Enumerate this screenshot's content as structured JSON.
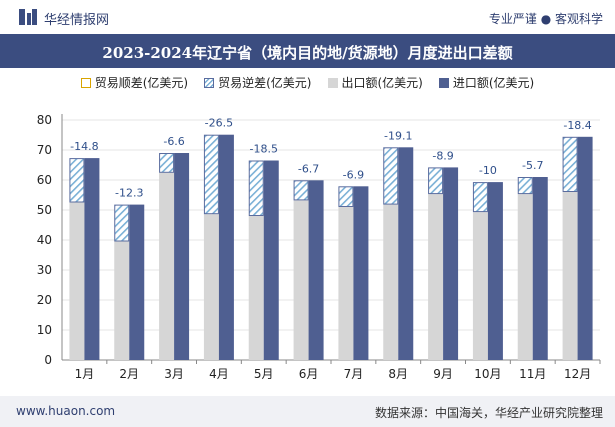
{
  "header": {
    "brand": "华经情报网",
    "tagline": "专业严谨 ● 客观科学"
  },
  "legend": {
    "surplus": "贸易顺差(亿美元)",
    "deficit": "贸易逆差(亿美元)",
    "export": "出口额(亿美元)",
    "import": "进口额(亿美元)"
  },
  "footer": {
    "website": "www.huaon.com",
    "source": "数据来源：中国海关，华经产业研究院整理"
  },
  "colors": {
    "import": "#4f5f91",
    "export": "#d6d6d6",
    "deficit_hatch": "#7ab0d6",
    "deficit_border": "#5a6c9e",
    "label": "#2f4f8a"
  },
  "chart_data": {
    "type": "bar",
    "title": "2023-2024年辽宁省（境内目的地/货源地）月度进出口差额",
    "categories": [
      "1月",
      "2月",
      "3月",
      "4月",
      "5月",
      "6月",
      "7月",
      "8月",
      "9月",
      "10月",
      "11月",
      "12月"
    ],
    "series": [
      {
        "name": "出口额(亿美元)",
        "values": [
          52.5,
          39.5,
          62.4,
          48.6,
          48.0,
          53.2,
          51.0,
          51.8,
          55.3,
          49.3,
          55.3,
          56.0
        ]
      },
      {
        "name": "进口额(亿美元)",
        "values": [
          67.3,
          51.8,
          69.0,
          75.1,
          66.5,
          59.9,
          57.9,
          70.9,
          64.2,
          59.3,
          61.0,
          74.4
        ]
      },
      {
        "name": "贸易逆差(亿美元)",
        "values": [
          -14.8,
          -12.3,
          -6.6,
          -26.5,
          -18.5,
          -6.7,
          -6.9,
          -19.1,
          -8.9,
          -10,
          -5.7,
          -18.4
        ]
      },
      {
        "name": "贸易顺差(亿美元)",
        "values": [
          null,
          null,
          null,
          null,
          null,
          null,
          null,
          null,
          null,
          null,
          null,
          null
        ]
      }
    ],
    "data_labels": [
      "-14.8",
      "-12.3",
      "-6.6",
      "-26.5",
      "-18.5",
      "-6.7",
      "-6.9",
      "-19.1",
      "-8.9",
      "-10",
      "-5.7",
      "-18.4"
    ],
    "yticks": [
      "0",
      "10",
      "20",
      "30",
      "40",
      "50",
      "60",
      "70",
      "80"
    ],
    "ylim": [
      0,
      80
    ],
    "legend_position": "top"
  }
}
